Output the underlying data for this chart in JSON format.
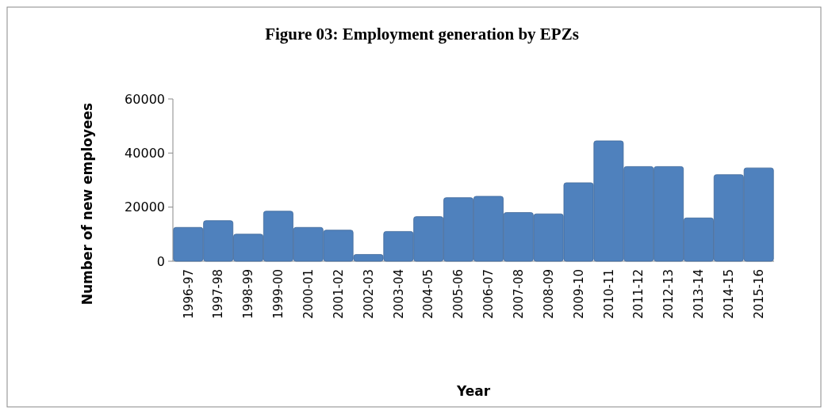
{
  "chart_data": {
    "type": "bar",
    "title": "Figure 03: Employment generation by EPZs",
    "xlabel": "Year",
    "ylabel": "Number of new employees",
    "categories": [
      "1996-97",
      "1997-98",
      "1998-99",
      "1999-00",
      "2000-01",
      "2001-02",
      "2002-03",
      "2003-04",
      "2004-05",
      "2005-06",
      "2006-07",
      "2007-08",
      "2008-09",
      "2009-10",
      "2010-11",
      "2011-12",
      "2012-13",
      "2013-14",
      "2014-15",
      "2015-16"
    ],
    "values": [
      12500,
      15000,
      10000,
      18500,
      12500,
      11500,
      2500,
      11000,
      16500,
      23500,
      24000,
      18000,
      17500,
      29000,
      44500,
      35000,
      35000,
      16000,
      32000,
      34500
    ],
    "color": "#4f81bd",
    "ylim": [
      0,
      60000
    ],
    "yticks": [
      0,
      20000,
      40000,
      60000
    ],
    "grid": false
  }
}
